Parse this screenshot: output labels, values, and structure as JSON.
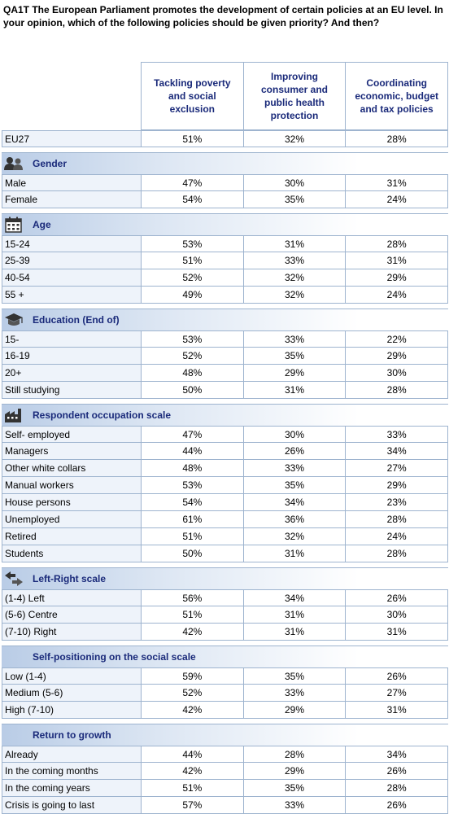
{
  "title": "QA1T  The European Parliament promotes the development of certain policies at an EU level. In your opinion, which of the following policies should be given priority? And then?",
  "columns": [
    "Tackling poverty and social exclusion",
    "Improving consumer and public health protection",
    "Coordinating economic, budget and tax policies"
  ],
  "eu27": {
    "label": "EU27",
    "values": [
      "51%",
      "32%",
      "28%"
    ]
  },
  "sections": [
    {
      "title": "Gender",
      "icon": "people-icon",
      "rows": [
        {
          "label": "Male",
          "values": [
            "47%",
            "30%",
            "31%"
          ]
        },
        {
          "label": "Female",
          "values": [
            "54%",
            "35%",
            "24%"
          ]
        }
      ]
    },
    {
      "title": "Age",
      "icon": "calendar-icon",
      "rows": [
        {
          "label": "15-24",
          "values": [
            "53%",
            "31%",
            "28%"
          ]
        },
        {
          "label": "25-39",
          "values": [
            "51%",
            "33%",
            "31%"
          ]
        },
        {
          "label": "40-54",
          "values": [
            "52%",
            "32%",
            "29%"
          ]
        },
        {
          "label": "55 +",
          "values": [
            "49%",
            "32%",
            "24%"
          ]
        }
      ]
    },
    {
      "title": "Education (End of)",
      "icon": "graduation-cap-icon",
      "rows": [
        {
          "label": "15-",
          "values": [
            "53%",
            "33%",
            "22%"
          ]
        },
        {
          "label": "16-19",
          "values": [
            "52%",
            "35%",
            "29%"
          ]
        },
        {
          "label": "20+",
          "values": [
            "48%",
            "29%",
            "30%"
          ]
        },
        {
          "label": "Still studying",
          "values": [
            "50%",
            "31%",
            "28%"
          ]
        }
      ]
    },
    {
      "title": "Respondent occupation scale",
      "icon": "factory-icon",
      "rows": [
        {
          "label": "Self- employed",
          "values": [
            "47%",
            "30%",
            "33%"
          ]
        },
        {
          "label": "Managers",
          "values": [
            "44%",
            "26%",
            "34%"
          ]
        },
        {
          "label": "Other white collars",
          "values": [
            "48%",
            "33%",
            "27%"
          ]
        },
        {
          "label": "Manual workers",
          "values": [
            "53%",
            "35%",
            "29%"
          ]
        },
        {
          "label": "House persons",
          "values": [
            "54%",
            "34%",
            "23%"
          ]
        },
        {
          "label": "Unemployed",
          "values": [
            "61%",
            "36%",
            "28%"
          ]
        },
        {
          "label": "Retired",
          "values": [
            "51%",
            "32%",
            "24%"
          ]
        },
        {
          "label": "Students",
          "values": [
            "50%",
            "31%",
            "28%"
          ]
        }
      ]
    },
    {
      "title": "Left-Right scale",
      "icon": "left-right-arrows-icon",
      "rows": [
        {
          "label": "(1-4) Left",
          "values": [
            "56%",
            "34%",
            "26%"
          ]
        },
        {
          "label": "(5-6) Centre",
          "values": [
            "51%",
            "31%",
            "30%"
          ]
        },
        {
          "label": "(7-10) Right",
          "values": [
            "42%",
            "31%",
            "31%"
          ]
        }
      ]
    },
    {
      "title": "Self-positioning on the social scale",
      "icon": "",
      "rows": [
        {
          "label": "Low (1-4)",
          "values": [
            "59%",
            "35%",
            "26%"
          ]
        },
        {
          "label": "Medium (5-6)",
          "values": [
            "52%",
            "33%",
            "27%"
          ]
        },
        {
          "label": "High (7-10)",
          "values": [
            "42%",
            "29%",
            "31%"
          ]
        }
      ]
    },
    {
      "title": "Return to growth",
      "icon": "",
      "rows": [
        {
          "label": "Already",
          "values": [
            "44%",
            "28%",
            "34%"
          ]
        },
        {
          "label": "In the coming months",
          "values": [
            "42%",
            "29%",
            "26%"
          ]
        },
        {
          "label": "In the coming years",
          "values": [
            "51%",
            "35%",
            "28%"
          ]
        },
        {
          "label": "Crisis is going to last",
          "values": [
            "57%",
            "33%",
            "26%"
          ]
        }
      ]
    }
  ]
}
